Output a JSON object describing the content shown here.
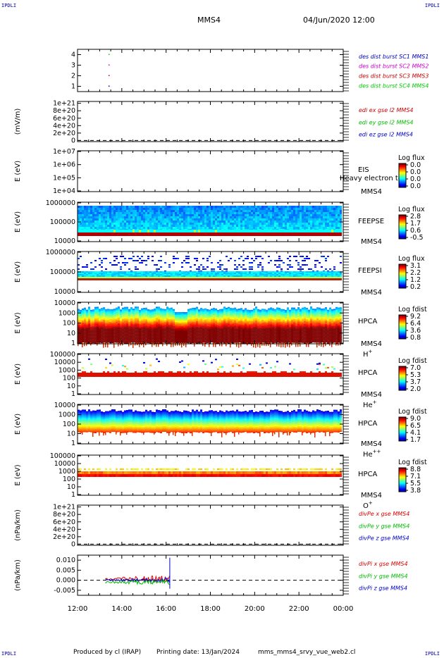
{
  "header": {
    "corner_label": "IPDLI",
    "spacecraft": "MMS4",
    "datetime": "04/Jun/2020 12:00"
  },
  "footer": {
    "producer": "Produced by cl (IRAP)",
    "printing_date": "Printing date: 13/Jan/2024",
    "script": "mms_mms4_srvy_vue_web2.cl"
  },
  "colors": {
    "mms1": "#0000cc",
    "mms2": "#cc00cc",
    "mms3": "#cc0000",
    "mms4": "#00cc00",
    "x": "#dd0000",
    "y": "#00bb00",
    "z": "#0000cc"
  },
  "chart_data": [
    {
      "id": "burst",
      "type": "scatter",
      "yticks": [
        "1",
        "2",
        "3",
        "4"
      ],
      "ylim": [
        0.5,
        4.5
      ],
      "ylabel": "",
      "points": [
        {
          "x": 13.4,
          "y": 4,
          "series": "mms4"
        },
        {
          "x": 13.4,
          "y": 3,
          "series": "mms2"
        },
        {
          "x": 13.4,
          "y": 2,
          "series": "mms3"
        },
        {
          "x": 13.4,
          "y": 1,
          "series": "mms1"
        }
      ],
      "legend": [
        {
          "name": "des dist burst SC1 MMS1",
          "color": "#0000cc"
        },
        {
          "name": "des dist burst SC2 MMS2",
          "color": "#cc00cc"
        },
        {
          "name": "des dist burst SC3 MMS3",
          "color": "#cc0000"
        },
        {
          "name": "des dist burst SC4 MMS4",
          "color": "#00cc00"
        }
      ]
    },
    {
      "id": "edi",
      "type": "line",
      "ylabel": "(mV/m)",
      "yticks": [
        "0",
        "2e+20",
        "4e+20",
        "6e+20",
        "8e+20",
        "1e+21"
      ],
      "ylim": [
        -0.3,
        10.5
      ],
      "zero_line": true,
      "legend": [
        {
          "name": "edi ex gse l2 MMS4",
          "color": "#cc0000"
        },
        {
          "name": "edi ey gse l2 MMS4",
          "color": "#00bb00"
        },
        {
          "name": "edi ez gse l2 MMS4",
          "color": "#0000cc"
        }
      ]
    },
    {
      "id": "eis",
      "type": "heatmap",
      "ylabel": "E (eV)",
      "yticks": [
        "1e+04",
        "1e+05",
        "1e+06",
        "1e+07"
      ],
      "log": true,
      "right_labels": [
        "EIS",
        "MMS4"
      ],
      "overlay_text": "Heavy electron to",
      "colorbar": {
        "title": "Log flux",
        "ticks": [
          "0.0",
          "0.0",
          "0.0",
          "0.0"
        ]
      }
    },
    {
      "id": "feepse",
      "type": "heatmap",
      "ylabel": "E (eV)",
      "yticks": [
        "10000",
        "100000",
        "1000000"
      ],
      "log": true,
      "right_labels": [
        "FEEPSE",
        "MMS4"
      ],
      "colorbar": {
        "title": "Log flux",
        "ticks": [
          "2.8",
          "1.7",
          "0.6",
          "-0.5"
        ]
      }
    },
    {
      "id": "feepsi",
      "type": "heatmap",
      "ylabel": "E (eV)",
      "yticks": [
        "10000",
        "100000",
        "1000000"
      ],
      "log": true,
      "right_labels": [
        "FEEPSI",
        "MMS4"
      ],
      "colorbar": {
        "title": "Log flux",
        "ticks": [
          "3.1",
          "2.2",
          "1.2",
          "0.2"
        ]
      }
    },
    {
      "id": "hpca_h",
      "type": "heatmap",
      "ylabel": "E (eV)",
      "yticks": [
        "1",
        "10",
        "100",
        "1000",
        "10000"
      ],
      "log": true,
      "right_labels": [
        "HPCA",
        "MMS4"
      ],
      "species": "H",
      "charge": "+",
      "colorbar": {
        "title": "Log fdist",
        "ticks": [
          "9.2",
          "6.4",
          "3.6",
          "0.8"
        ]
      }
    },
    {
      "id": "hpca_he",
      "type": "heatmap",
      "ylabel": "E (eV)",
      "yticks": [
        "1",
        "10",
        "100",
        "1000",
        "10000",
        "100000"
      ],
      "log": true,
      "right_labels": [
        "HPCA",
        "MMS4"
      ],
      "species": "He",
      "charge": "+",
      "colorbar": {
        "title": "Log fdist",
        "ticks": [
          "7.0",
          "5.3",
          "3.7",
          "2.0"
        ]
      }
    },
    {
      "id": "hpca_hepp",
      "type": "heatmap",
      "ylabel": "E (eV)",
      "yticks": [
        "1",
        "10",
        "100",
        "1000",
        "10000"
      ],
      "log": true,
      "right_labels": [
        "HPCA",
        "MMS4"
      ],
      "species": "He",
      "charge": "++",
      "colorbar": {
        "title": "Log fdist",
        "ticks": [
          "9.0",
          "6.5",
          "4.1",
          "1.7"
        ]
      }
    },
    {
      "id": "hpca_o",
      "type": "heatmap",
      "ylabel": "E (eV)",
      "yticks": [
        "1",
        "10",
        "100",
        "1000",
        "10000",
        "100000"
      ],
      "log": true,
      "right_labels": [
        "HPCA",
        "MMS4"
      ],
      "species": "O",
      "charge": "+",
      "colorbar": {
        "title": "Log fdist",
        "ticks": [
          "8.8",
          "7.1",
          "5.5",
          "3.8"
        ]
      }
    },
    {
      "id": "divpe",
      "type": "line",
      "ylabel": "(nPa/km)",
      "yticks": [
        "0",
        "2e+20",
        "4e+20",
        "6e+20",
        "8e+20",
        "1e+21"
      ],
      "ylim": [
        -0.3,
        10.5
      ],
      "zero_line": true,
      "legend": [
        {
          "name": "divPe x gse MMS4",
          "color": "#dd0000"
        },
        {
          "name": "divPe y gse MMS4",
          "color": "#00bb00"
        },
        {
          "name": "divPe z gse MMS4",
          "color": "#0000cc"
        }
      ]
    },
    {
      "id": "divpi",
      "type": "line",
      "ylabel": "(nPa/km)",
      "yticks": [
        "-0.005",
        "0.000",
        "0.005",
        "0.010"
      ],
      "ylim": [
        -0.0075,
        0.0125
      ],
      "zero_line": true,
      "data_x_range": [
        "13:15",
        "16:10"
      ],
      "legend": [
        {
          "name": "divPi x gse MMS4",
          "color": "#dd0000"
        },
        {
          "name": "divPi y gse MMS4",
          "color": "#00bb00"
        },
        {
          "name": "divPi z gse MMS4",
          "color": "#0000cc"
        }
      ]
    }
  ],
  "xaxis": {
    "ticks": [
      "12:00",
      "14:00",
      "16:00",
      "18:00",
      "20:00",
      "22:00",
      "00:00"
    ],
    "range": [
      "12:00",
      "00:00"
    ]
  }
}
